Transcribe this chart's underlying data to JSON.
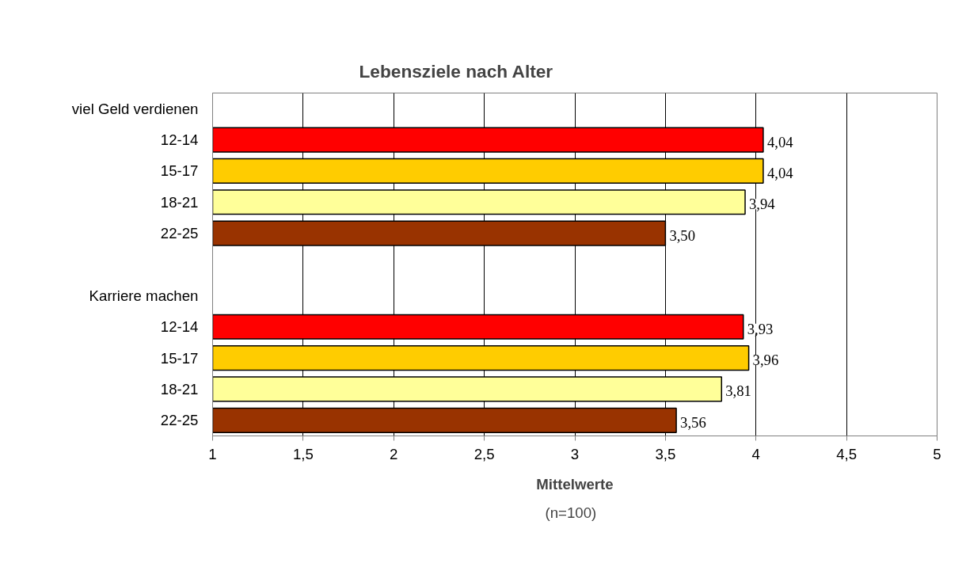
{
  "chart_data": {
    "type": "bar",
    "orientation": "horizontal",
    "title": "Lebensziele nach Alter",
    "xlabel": "Mittelwerte",
    "categories": [
      "viel Geld verdienen",
      "12-14",
      "15-17",
      "18-21",
      "22-25",
      null,
      "Karriere machen",
      "12-14",
      "15-17",
      "18-21",
      "22-25"
    ],
    "values": [
      null,
      4.04,
      4.04,
      3.94,
      3.5,
      null,
      null,
      3.93,
      3.96,
      3.81,
      3.56
    ],
    "value_labels": [
      null,
      "4,04",
      "4,04",
      "3,94",
      "3,50",
      null,
      null,
      "3,93",
      "3,96",
      "3,81",
      "3,56"
    ],
    "colors": [
      null,
      "#ff0000",
      "#ffcc00",
      "#ffff99",
      "#993300",
      null,
      null,
      "#ff0000",
      "#ffcc00",
      "#ffff99",
      "#993300"
    ],
    "xlim": [
      1,
      5
    ],
    "xticks": [
      1,
      {
        "value": 1.5,
        "label": "1,5"
      },
      2,
      {
        "value": 2.5,
        "label": "2,5"
      },
      3,
      {
        "value": 3.5,
        "label": "3,5"
      },
      4,
      {
        "value": 4.5,
        "label": "4,5"
      },
      5
    ],
    "grid": "x",
    "annotations": [
      "(n=100)"
    ]
  }
}
